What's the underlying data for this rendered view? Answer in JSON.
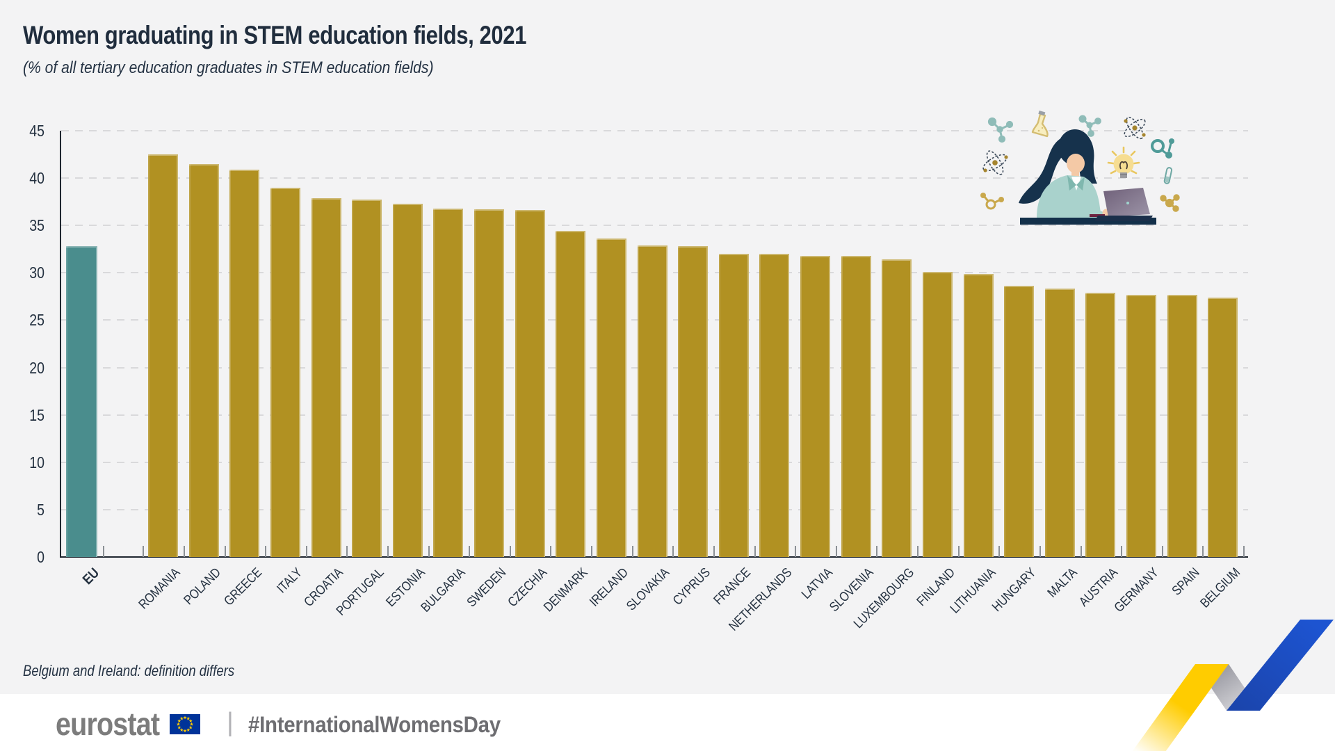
{
  "header": {
    "title": "Women graduating in STEM education fields, 2021",
    "subtitle": "(% of all tertiary education graduates in STEM education fields)"
  },
  "chart_data": {
    "type": "bar",
    "title": "Women graduating in STEM education fields, 2021",
    "subtitle": "(% of all tertiary education graduates in STEM education fields)",
    "categories": [
      "EU",
      "ROMANIA",
      "POLAND",
      "GREECE",
      "ITALY",
      "CROATIA",
      "PORTUGAL",
      "ESTONIA",
      "BULGARIA",
      "SWEDEN",
      "CZECHIA",
      "DENMARK",
      "IRELAND",
      "SLOVAKIA",
      "CYPRUS",
      "FRANCE",
      "NETHERLANDS",
      "LATVIA",
      "SLOVENIA",
      "LUXEMBOURG",
      "FINLAND",
      "LITHUANIA",
      "HUNGARY",
      "MALTA",
      "AUSTRIA",
      "GERMANY",
      "SPAIN",
      "BELGIUM"
    ],
    "values": [
      32.8,
      42.5,
      41.5,
      40.9,
      39.0,
      37.9,
      37.7,
      37.3,
      36.8,
      36.7,
      36.6,
      34.4,
      33.6,
      32.9,
      32.8,
      32.0,
      32.0,
      31.8,
      31.8,
      31.4,
      30.1,
      29.9,
      28.6,
      28.3,
      27.9,
      27.7,
      27.7,
      27.4
    ],
    "xlabel": "",
    "ylabel": "",
    "ylim": [
      0,
      45
    ],
    "yticks": [
      0,
      5,
      10,
      15,
      20,
      25,
      30,
      35,
      40,
      45
    ],
    "grid": "horizontal-dashed",
    "legend": "none",
    "colors": {
      "eu_bar": "#4a8d8d",
      "country_bar": "#b19122",
      "gridline": "#d9d9db",
      "axis": "#1f2730",
      "label": "#243140",
      "background": "#f3f3f4"
    }
  },
  "footnote": {
    "text": "Belgium and Ireland: definition differs"
  },
  "footer": {
    "logo_text": "eurostat",
    "separator": "|",
    "hashtag": "#InternationalWomensDay",
    "flag_blue": "#003399",
    "star_yellow": "#ffcc00"
  },
  "illustration": {
    "description": "woman with laptop at desk surrounded by science icons",
    "icons": [
      "molecule-icon",
      "flask-icon",
      "molecule-icon",
      "atom-icon",
      "atom-icon",
      "lightbulb-icon",
      "ring-molecule-icon",
      "test-tube-icon",
      "gold-molecule-icon",
      "gold-molecule-icon",
      "woman-at-laptop",
      "laptop-icon",
      "desk"
    ]
  },
  "decoration": {
    "ribbon_colors": [
      "#ffcc00",
      "#a7a7b0",
      "#1c4fc6"
    ]
  }
}
